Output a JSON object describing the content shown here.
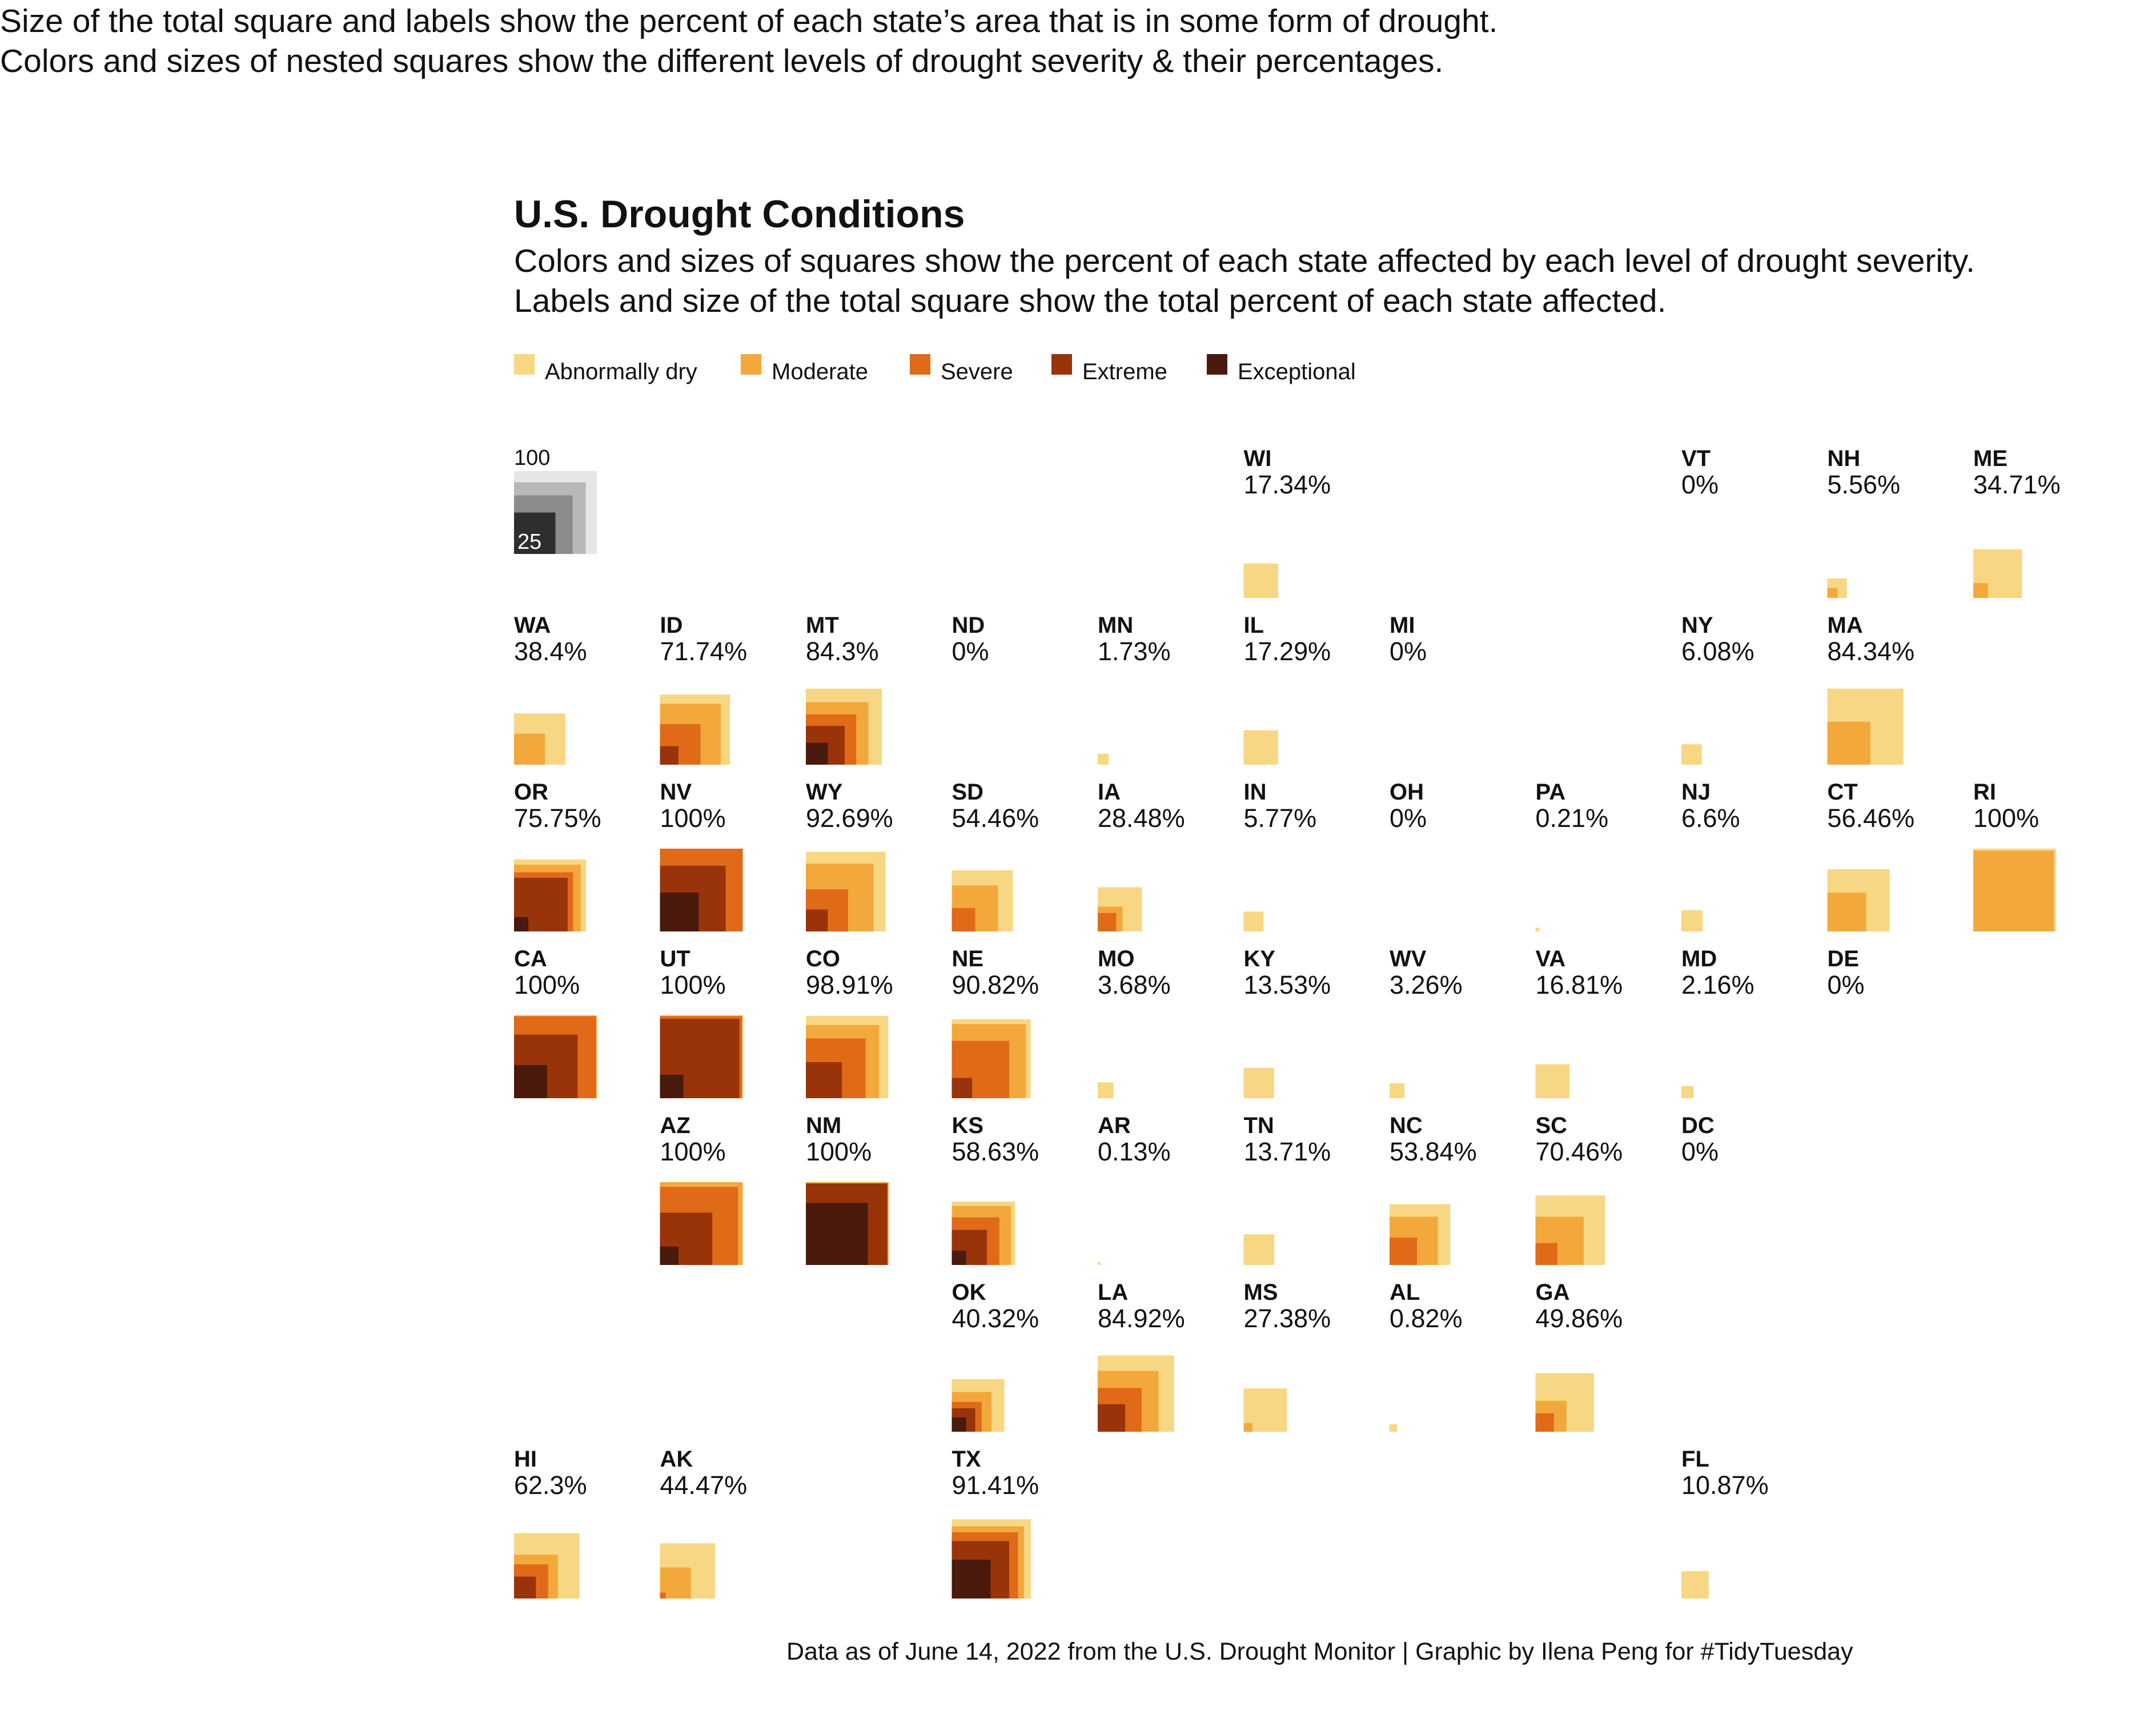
{
  "intro": {
    "line1": "Size of the total square and labels show the percent of each state’s area that is in some form of drought.",
    "line2": "Colors and sizes of nested squares show the different levels of drought severity &  their percentages."
  },
  "chart_data": {
    "type": "nested-square tile grid map",
    "title": "U.S. Drought Conditions",
    "subtitle": [
      "Colors and sizes of squares show the percent of each state affected by each level of drought severity.",
      "Labels and size of the total square show the total percent of each state affected."
    ],
    "colors": {
      "Abnormally dry": "#f7d783",
      "Moderate": "#f3a83c",
      "Severe": "#e06a18",
      "Extreme": "#98330a",
      "Exceptional": "#4a1a0c"
    },
    "legend": [
      "Abnormally dry",
      "Moderate",
      "Severe",
      "Extreme",
      "Exceptional"
    ],
    "legend_placement": "top-left",
    "size_key": {
      "labels": [
        "100",
        "25"
      ],
      "values": [
        100,
        75,
        50,
        25
      ],
      "colors": [
        "#e6e6e6",
        "#b8b8b8",
        "#8c8c8c",
        "#2e2e2e"
      ]
    },
    "states": [
      {
        "abbr": "WI",
        "label": "17.34%",
        "row": 0,
        "col": 5,
        "levels": [
          17.34,
          0,
          0,
          0,
          0
        ]
      },
      {
        "abbr": "VT",
        "label": "0%",
        "row": 0,
        "col": 8,
        "levels": [
          0,
          0,
          0,
          0,
          0
        ]
      },
      {
        "abbr": "NH",
        "label": "5.56%",
        "row": 0,
        "col": 9,
        "levels": [
          5.56,
          1.5,
          0,
          0,
          0
        ]
      },
      {
        "abbr": "ME",
        "label": "34.71%",
        "row": 0,
        "col": 10,
        "levels": [
          34.71,
          3.2,
          0,
          0,
          0
        ]
      },
      {
        "abbr": "WA",
        "label": "38.4%",
        "row": 1,
        "col": 0,
        "levels": [
          38.4,
          14.0,
          0,
          0,
          0
        ]
      },
      {
        "abbr": "ID",
        "label": "71.74%",
        "row": 1,
        "col": 1,
        "levels": [
          71.74,
          54.0,
          24.0,
          5.0,
          0
        ]
      },
      {
        "abbr": "MT",
        "label": "84.3%",
        "row": 1,
        "col": 2,
        "levels": [
          84.3,
          57.0,
          37.0,
          22.0,
          7.0
        ]
      },
      {
        "abbr": "ND",
        "label": "0%",
        "row": 1,
        "col": 3,
        "levels": [
          0,
          0,
          0,
          0,
          0
        ]
      },
      {
        "abbr": "MN",
        "label": "1.73%",
        "row": 1,
        "col": 4,
        "levels": [
          1.73,
          0,
          0,
          0,
          0
        ]
      },
      {
        "abbr": "IL",
        "label": "17.29%",
        "row": 1,
        "col": 5,
        "levels": [
          17.29,
          0,
          0,
          0,
          0
        ]
      },
      {
        "abbr": "MI",
        "label": "0%",
        "row": 1,
        "col": 6,
        "levels": [
          0,
          0,
          0,
          0,
          0
        ]
      },
      {
        "abbr": "NY",
        "label": "6.08%",
        "row": 1,
        "col": 8,
        "levels": [
          6.08,
          0,
          0,
          0,
          0
        ]
      },
      {
        "abbr": "MA",
        "label": "84.34%",
        "row": 1,
        "col": 9,
        "levels": [
          84.34,
          27.0,
          0,
          0,
          0
        ]
      },
      {
        "abbr": "OR",
        "label": "75.75%",
        "row": 2,
        "col": 0,
        "levels": [
          75.75,
          65.0,
          51.0,
          42.0,
          3.0
        ]
      },
      {
        "abbr": "NV",
        "label": "100%",
        "row": 2,
        "col": 1,
        "levels": [
          100,
          100,
          100,
          63.0,
          22.0
        ]
      },
      {
        "abbr": "WY",
        "label": "92.69%",
        "row": 2,
        "col": 2,
        "levels": [
          92.69,
          67.0,
          26.0,
          7.0,
          0
        ]
      },
      {
        "abbr": "SD",
        "label": "54.46%",
        "row": 2,
        "col": 3,
        "levels": [
          54.46,
          31.0,
          8.0,
          0,
          0
        ]
      },
      {
        "abbr": "IA",
        "label": "28.48%",
        "row": 2,
        "col": 4,
        "levels": [
          28.48,
          9.0,
          5.0,
          0,
          0
        ]
      },
      {
        "abbr": "IN",
        "label": "5.77%",
        "row": 2,
        "col": 5,
        "levels": [
          5.77,
          0,
          0,
          0,
          0
        ]
      },
      {
        "abbr": "OH",
        "label": "0%",
        "row": 2,
        "col": 6,
        "levels": [
          0,
          0,
          0,
          0,
          0
        ]
      },
      {
        "abbr": "PA",
        "label": "0.21%",
        "row": 2,
        "col": 7,
        "levels": [
          0.21,
          0,
          0,
          0,
          0
        ]
      },
      {
        "abbr": "NJ",
        "label": "6.6%",
        "row": 2,
        "col": 8,
        "levels": [
          6.6,
          0,
          0,
          0,
          0
        ]
      },
      {
        "abbr": "CT",
        "label": "56.46%",
        "row": 2,
        "col": 9,
        "levels": [
          56.46,
          22.0,
          0,
          0,
          0
        ]
      },
      {
        "abbr": "RI",
        "label": "100%",
        "row": 2,
        "col": 10,
        "levels": [
          100,
          95.0,
          0,
          0,
          0
        ]
      },
      {
        "abbr": "CA",
        "label": "100%",
        "row": 3,
        "col": 0,
        "levels": [
          100,
          100,
          98.0,
          59.0,
          16.0
        ]
      },
      {
        "abbr": "UT",
        "label": "100%",
        "row": 3,
        "col": 1,
        "levels": [
          100,
          100,
          98.0,
          92.0,
          8.0
        ]
      },
      {
        "abbr": "CO",
        "label": "98.91%",
        "row": 3,
        "col": 2,
        "levels": [
          98.91,
          78.0,
          52.0,
          19.0,
          0
        ]
      },
      {
        "abbr": "NE",
        "label": "90.82%",
        "row": 3,
        "col": 3,
        "levels": [
          90.82,
          80.0,
          48.0,
          6.0,
          0
        ]
      },
      {
        "abbr": "MO",
        "label": "3.68%",
        "row": 3,
        "col": 4,
        "levels": [
          3.68,
          0,
          0,
          0,
          0
        ]
      },
      {
        "abbr": "KY",
        "label": "13.53%",
        "row": 3,
        "col": 5,
        "levels": [
          13.53,
          0,
          0,
          0,
          0
        ]
      },
      {
        "abbr": "WV",
        "label": "3.26%",
        "row": 3,
        "col": 6,
        "levels": [
          3.26,
          0,
          0,
          0,
          0
        ]
      },
      {
        "abbr": "VA",
        "label": "16.81%",
        "row": 3,
        "col": 7,
        "levels": [
          16.81,
          0,
          0,
          0,
          0
        ]
      },
      {
        "abbr": "MD",
        "label": "2.16%",
        "row": 3,
        "col": 8,
        "levels": [
          2.16,
          0,
          0,
          0,
          0
        ]
      },
      {
        "abbr": "DE",
        "label": "0%",
        "row": 3,
        "col": 9,
        "levels": [
          0,
          0,
          0,
          0,
          0
        ]
      },
      {
        "abbr": "AZ",
        "label": "100%",
        "row": 4,
        "col": 1,
        "levels": [
          100,
          100,
          89.0,
          40.0,
          5.0
        ]
      },
      {
        "abbr": "NM",
        "label": "100%",
        "row": 4,
        "col": 2,
        "levels": [
          100,
          100,
          97.0,
          97.0,
          56.0
        ]
      },
      {
        "abbr": "KS",
        "label": "58.63%",
        "row": 4,
        "col": 3,
        "levels": [
          58.63,
          51.0,
          33.0,
          18.0,
          3.0
        ]
      },
      {
        "abbr": "AR",
        "label": "0.13%",
        "row": 4,
        "col": 4,
        "levels": [
          0.13,
          0,
          0,
          0,
          0
        ]
      },
      {
        "abbr": "TN",
        "label": "13.71%",
        "row": 4,
        "col": 5,
        "levels": [
          13.71,
          0,
          0,
          0,
          0
        ]
      },
      {
        "abbr": "NC",
        "label": "53.84%",
        "row": 4,
        "col": 6,
        "levels": [
          53.84,
          34.0,
          11.0,
          0,
          0
        ]
      },
      {
        "abbr": "SC",
        "label": "70.46%",
        "row": 4,
        "col": 7,
        "levels": [
          70.46,
          34.0,
          7.0,
          0,
          0
        ]
      },
      {
        "abbr": "DC",
        "label": "0%",
        "row": 4,
        "col": 8,
        "levels": [
          0,
          0,
          0,
          0,
          0
        ]
      },
      {
        "abbr": "OK",
        "label": "40.32%",
        "row": 5,
        "col": 3,
        "levels": [
          40.32,
          23.0,
          13.0,
          8.0,
          3.0
        ]
      },
      {
        "abbr": "LA",
        "label": "84.92%",
        "row": 5,
        "col": 4,
        "levels": [
          84.92,
          54.0,
          28.0,
          11.0,
          0
        ]
      },
      {
        "abbr": "MS",
        "label": "27.38%",
        "row": 5,
        "col": 5,
        "levels": [
          27.38,
          1.1,
          0,
          0,
          0
        ]
      },
      {
        "abbr": "AL",
        "label": "0.82%",
        "row": 5,
        "col": 6,
        "levels": [
          0.82,
          0,
          0,
          0,
          0
        ]
      },
      {
        "abbr": "GA",
        "label": "49.86%",
        "row": 5,
        "col": 7,
        "levels": [
          49.86,
          14.0,
          5.0,
          0,
          0
        ]
      },
      {
        "abbr": "HI",
        "label": "62.3%",
        "row": 6,
        "col": 0,
        "levels": [
          62.3,
          28.0,
          17.0,
          7.0,
          0
        ]
      },
      {
        "abbr": "AK",
        "label": "44.47%",
        "row": 6,
        "col": 1,
        "levels": [
          44.47,
          14.0,
          0.5,
          0,
          0
        ]
      },
      {
        "abbr": "TX",
        "label": "91.41%",
        "row": 6,
        "col": 3,
        "levels": [
          91.41,
          76.0,
          64.0,
          48.0,
          22.0
        ]
      },
      {
        "abbr": "FL",
        "label": "10.87%",
        "row": 6,
        "col": 8,
        "levels": [
          10.87,
          0,
          0,
          0,
          0
        ]
      }
    ]
  },
  "caption": "Data as of June 14, 2022 from the U.S. Drought Monitor | Graphic by Ilena Peng for #TidyTuesday"
}
